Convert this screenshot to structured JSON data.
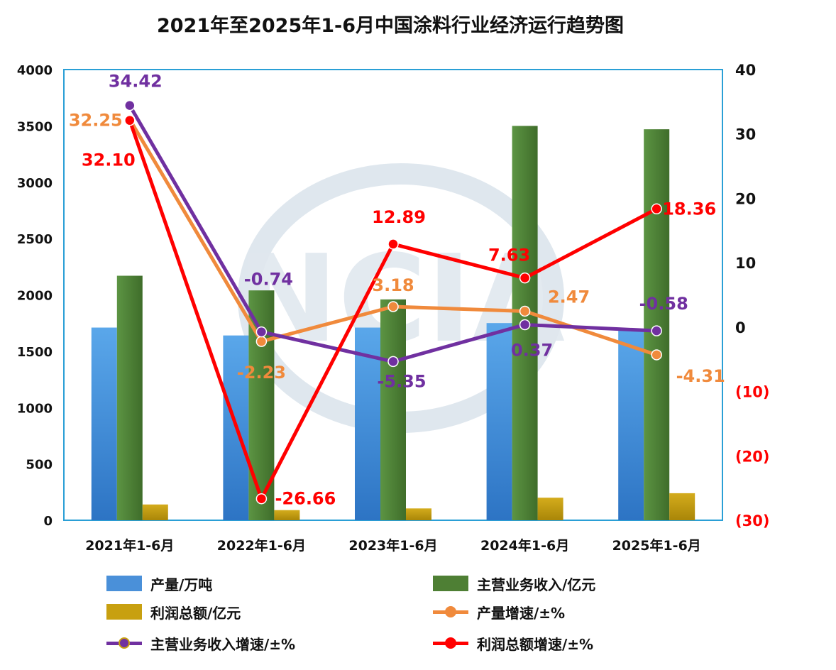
{
  "chart_data": {
    "type": "bar",
    "title": "2021年至2025年1-6月中国涂料行业经济运行趋势图",
    "categories": [
      "2021年1-6月",
      "2022年1-6月",
      "2023年1-6月",
      "2024年1-6月",
      "2025年1-6月"
    ],
    "y_left": {
      "ylim": [
        0,
        4000
      ],
      "ticks": [
        "0",
        "500",
        "1000",
        "1500",
        "2000",
        "2500",
        "3000",
        "3500",
        "4000"
      ]
    },
    "y_right": {
      "ylim": [
        -30,
        40
      ],
      "ticks": [
        {
          "value": 40,
          "label": "40"
        },
        {
          "value": 30,
          "label": "30"
        },
        {
          "value": 20,
          "label": "20"
        },
        {
          "value": 10,
          "label": "10"
        },
        {
          "value": 0,
          "label": "0"
        },
        {
          "value": -10,
          "label": "(10)"
        },
        {
          "value": -20,
          "label": "(20)"
        },
        {
          "value": -30,
          "label": "(30)"
        }
      ]
    },
    "grid": false,
    "legend_position": "bottom",
    "watermark": "NCIA",
    "series": [
      {
        "name": "产量/万吨",
        "kind": "bar",
        "axis": "left",
        "color": "#4a90d9",
        "values": [
          1710,
          1640,
          1710,
          1750,
          1700
        ]
      },
      {
        "name": "主营业务收入/亿元",
        "kind": "bar",
        "axis": "left",
        "color": "#4e7f34",
        "values": [
          2170,
          2040,
          1960,
          3500,
          3470
        ]
      },
      {
        "name": "利润总额/亿元",
        "kind": "bar",
        "axis": "left",
        "color": "#c8a010",
        "values": [
          140,
          90,
          105,
          200,
          240
        ]
      },
      {
        "name": "产量增速/±%",
        "kind": "line",
        "axis": "right",
        "color": "#f08a3c",
        "values": [
          32.25,
          -2.23,
          3.18,
          2.47,
          -4.31
        ],
        "labels": [
          "32.25",
          "-2.23",
          "3.18",
          "2.47",
          "-4.31"
        ]
      },
      {
        "name": "主营业务收入增速/±%",
        "kind": "line",
        "axis": "right",
        "color": "#7030a0",
        "values": [
          34.42,
          -0.74,
          -5.35,
          0.37,
          -0.58
        ],
        "labels": [
          "34.42",
          "-0.74",
          "-5.35",
          "0.37",
          "-0.58"
        ]
      },
      {
        "name": "利润总额增速/±%",
        "kind": "line",
        "axis": "right",
        "color": "#ff0000",
        "values": [
          32.1,
          -26.66,
          12.89,
          7.63,
          18.36
        ],
        "labels": [
          "32.10",
          "-26.66",
          "12.89",
          "7.63",
          "18.36"
        ]
      }
    ]
  }
}
